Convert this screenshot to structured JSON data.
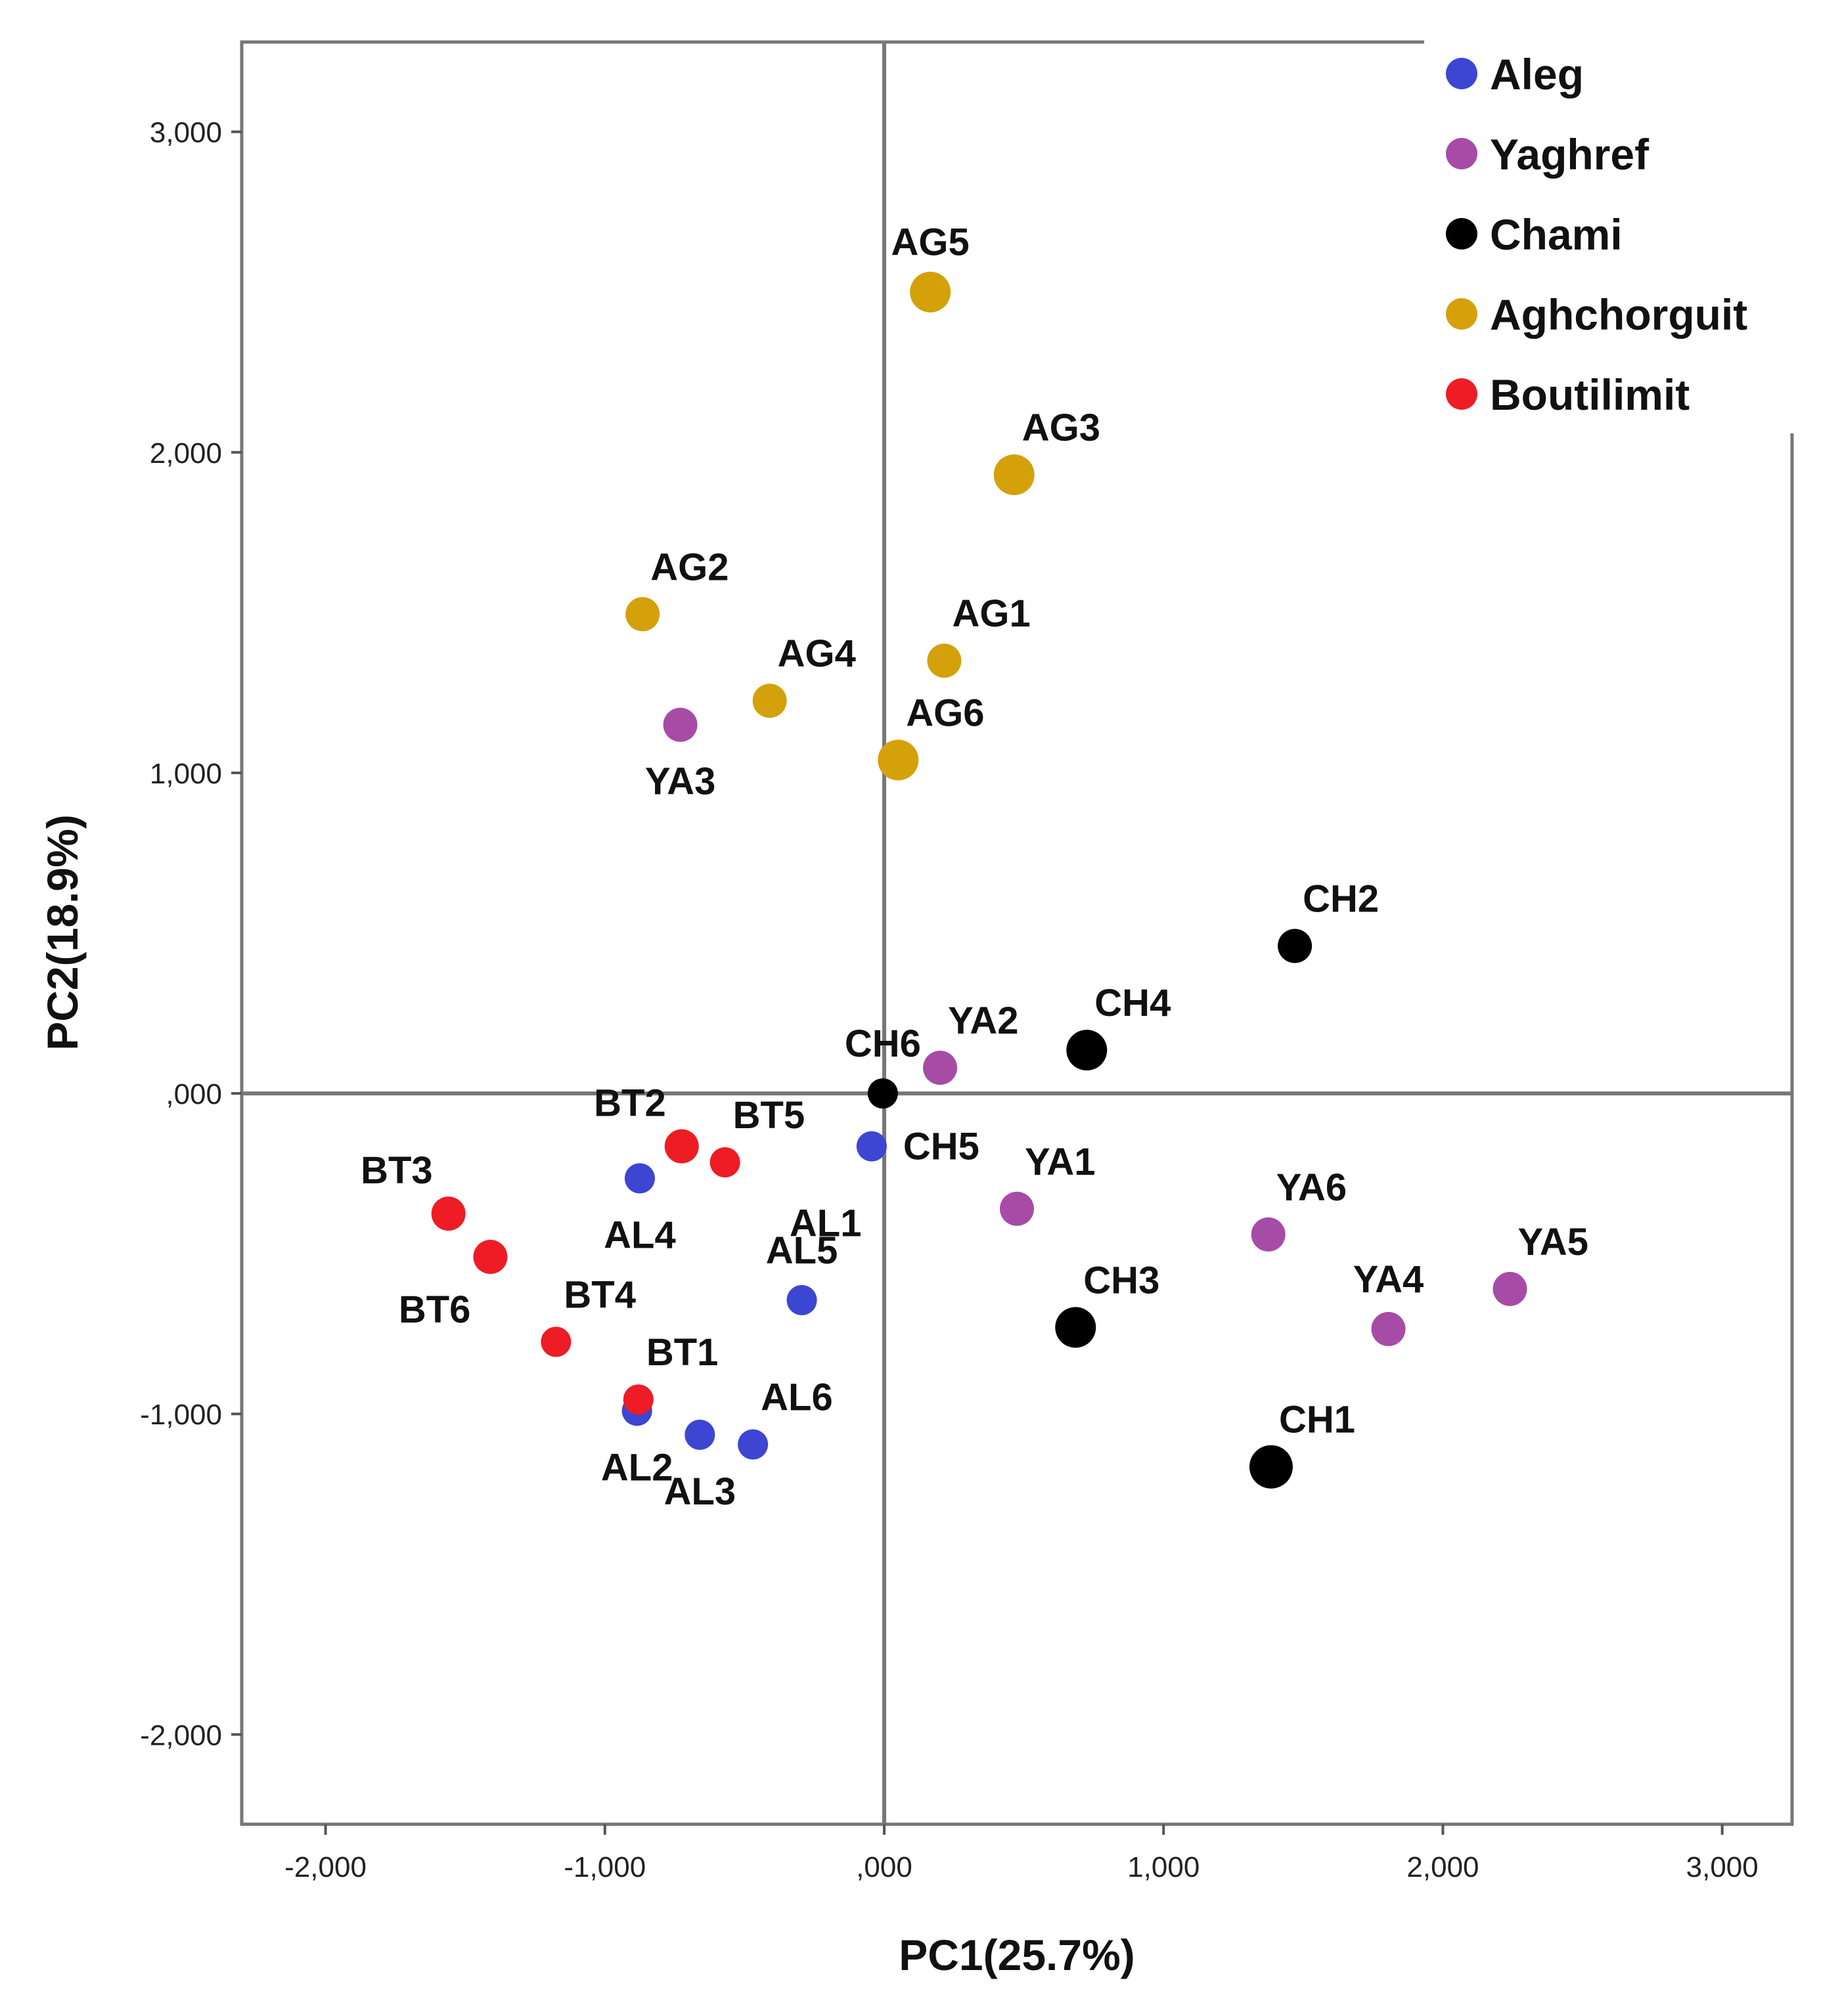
{
  "chart_data": {
    "type": "scatter",
    "xlabel": "PC1(25.7%)",
    "ylabel": "PC2(18.9%)",
    "xlim": [
      -2300,
      3250
    ],
    "ylim": [
      -2280,
      3280
    ],
    "xticks": [
      -2000,
      -1000,
      0,
      1000,
      2000,
      3000
    ],
    "yticks": [
      -2000,
      -1000,
      0,
      1000,
      2000,
      3000
    ],
    "xtick_labels": [
      "-2,000",
      "-1,000",
      ",000",
      "1,000",
      "2,000",
      "3,000"
    ],
    "ytick_labels": [
      "-2,000",
      "-1,000",
      ",000",
      "1,000",
      "2,000",
      "3,000"
    ],
    "reference_lines": {
      "x": 0,
      "y": 0
    },
    "legend_position": "top-right",
    "groups": [
      {
        "name": "Aleg",
        "color": "#3c46d2"
      },
      {
        "name": "Yaghref",
        "color": "#a64ca6"
      },
      {
        "name": "Chami",
        "color": "#000000"
      },
      {
        "name": "Aghchorguit",
        "color": "#d4a10a"
      },
      {
        "name": "Boutilimit",
        "color": "#ee1c24"
      }
    ],
    "points": [
      {
        "label": "AG5",
        "group": "Aghchorguit",
        "x": 165,
        "y": 2500,
        "size": "large",
        "label_pos": "above"
      },
      {
        "label": "AG3",
        "group": "Aghchorguit",
        "x": 465,
        "y": 1930,
        "size": "large",
        "label_pos": "above-right"
      },
      {
        "label": "AG2",
        "group": "Aghchorguit",
        "x": -865,
        "y": 1495,
        "size": "medium",
        "label_pos": "above-right"
      },
      {
        "label": "AG1",
        "group": "Aghchorguit",
        "x": 215,
        "y": 1350,
        "size": "medium",
        "label_pos": "above-right"
      },
      {
        "label": "AG4",
        "group": "Aghchorguit",
        "x": -410,
        "y": 1225,
        "size": "medium",
        "label_pos": "above-right"
      },
      {
        "label": "AG6",
        "group": "Aghchorguit",
        "x": 50,
        "y": 1040,
        "size": "large",
        "label_pos": "above-right"
      },
      {
        "label": "YA3",
        "group": "Yaghref",
        "x": -730,
        "y": 1150,
        "size": "medium",
        "label_pos": "below"
      },
      {
        "label": "YA2",
        "group": "Yaghref",
        "x": 200,
        "y": 80,
        "size": "medium",
        "label_pos": "above-right"
      },
      {
        "label": "YA1",
        "group": "Yaghref",
        "x": 475,
        "y": -360,
        "size": "medium",
        "label_pos": "above-right"
      },
      {
        "label": "YA6",
        "group": "Yaghref",
        "x": 1375,
        "y": -440,
        "size": "medium",
        "label_pos": "above-right"
      },
      {
        "label": "YA4",
        "group": "Yaghref",
        "x": 1805,
        "y": -735,
        "size": "medium",
        "label_pos": "above"
      },
      {
        "label": "YA5",
        "group": "Yaghref",
        "x": 2240,
        "y": -610,
        "size": "medium",
        "label_pos": "above-right"
      },
      {
        "label": "CH2",
        "group": "Chami",
        "x": 1470,
        "y": 460,
        "size": "medium",
        "label_pos": "above-right"
      },
      {
        "label": "CH4",
        "group": "Chami",
        "x": 725,
        "y": 135,
        "size": "large",
        "label_pos": "above-right"
      },
      {
        "label": "CH6",
        "group": "Chami",
        "x": -5,
        "y": 0,
        "size": "small",
        "label_pos": "above"
      },
      {
        "label": "CH3",
        "group": "Chami",
        "x": 685,
        "y": -730,
        "size": "large",
        "label_pos": "above-right"
      },
      {
        "label": "CH1",
        "group": "Chami",
        "x": 1385,
        "y": -1165,
        "size": "xlarge",
        "label_pos": "above-right"
      },
      {
        "label": "CH5",
        "group": "Aleg",
        "x": -45,
        "y": -165,
        "size": "small",
        "label_pos": "right"
      },
      {
        "label": "AL4",
        "group": "Aleg",
        "x": -875,
        "y": -265,
        "size": "small",
        "label_pos": "below"
      },
      {
        "label": "AL1",
        "group": "Aleg",
        "x": -20,
        "y": -310,
        "size": "none",
        "label_pos": "left"
      },
      {
        "label": "AL5",
        "group": "Aleg",
        "x": -295,
        "y": -645,
        "size": "small",
        "label_pos": "above"
      },
      {
        "label": "AL2",
        "group": "Aleg",
        "x": -885,
        "y": -990,
        "size": "small",
        "label_pos": "below"
      },
      {
        "label": "AL3",
        "group": "Aleg",
        "x": -660,
        "y": -1065,
        "size": "small",
        "label_pos": "below"
      },
      {
        "label": "AL6",
        "group": "Aleg",
        "x": -470,
        "y": -1095,
        "size": "small",
        "label_pos": "above-right"
      },
      {
        "label": "BT2",
        "group": "Boutilimit",
        "x": -725,
        "y": -165,
        "size": "medium",
        "label_pos": "above-left"
      },
      {
        "label": "BT5",
        "group": "Boutilimit",
        "x": -570,
        "y": -215,
        "size": "small",
        "label_pos": "above-right"
      },
      {
        "label": "BT3",
        "group": "Boutilimit",
        "x": -1560,
        "y": -375,
        "size": "medium",
        "label_pos": "above-left"
      },
      {
        "label": "BT6",
        "group": "Boutilimit",
        "x": -1410,
        "y": -510,
        "size": "medium",
        "label_pos": "below-left"
      },
      {
        "label": "BT4",
        "group": "Boutilimit",
        "x": -1175,
        "y": -775,
        "size": "small",
        "label_pos": "above-right"
      },
      {
        "label": "BT1",
        "group": "Boutilimit",
        "x": -880,
        "y": -955,
        "size": "small",
        "label_pos": "above-right"
      }
    ]
  }
}
